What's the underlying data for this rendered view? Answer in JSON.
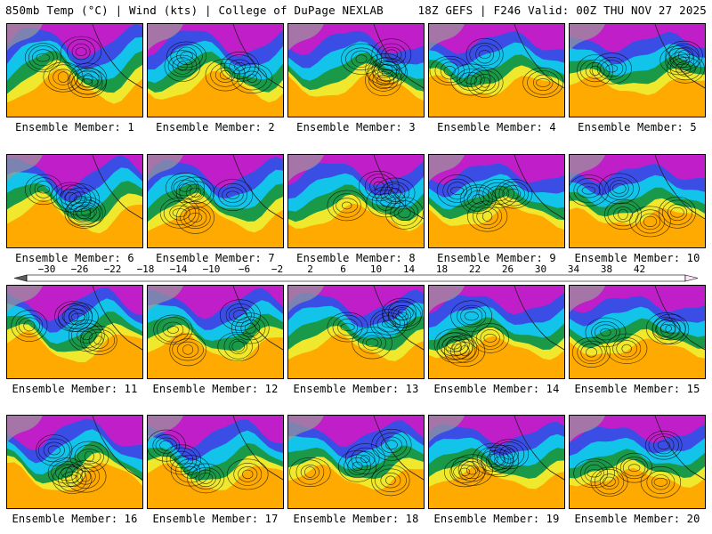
{
  "header": {
    "left": "850mb Temp (°C) | Wind (kts) | College of DuPage NEXLAB",
    "right": "18Z GEFS | F246 Valid: 00Z THU NOV 27 2025"
  },
  "members": [
    {
      "label": "Ensemble Member: 1"
    },
    {
      "label": "Ensemble Member: 2"
    },
    {
      "label": "Ensemble Member: 3"
    },
    {
      "label": "Ensemble Member: 4"
    },
    {
      "label": "Ensemble Member: 5"
    },
    {
      "label": "Ensemble Member: 6"
    },
    {
      "label": "Ensemble Member: 7"
    },
    {
      "label": "Ensemble Member: 8"
    },
    {
      "label": "Ensemble Member: 9"
    },
    {
      "label": "Ensemble Member: 10"
    },
    {
      "label": "Ensemble Member: 11"
    },
    {
      "label": "Ensemble Member: 12"
    },
    {
      "label": "Ensemble Member: 13"
    },
    {
      "label": "Ensemble Member: 14"
    },
    {
      "label": "Ensemble Member: 15"
    },
    {
      "label": "Ensemble Member: 16"
    },
    {
      "label": "Ensemble Member: 17"
    },
    {
      "label": "Ensemble Member: 18"
    },
    {
      "label": "Ensemble Member: 19"
    },
    {
      "label": "Ensemble Member: 20"
    }
  ],
  "colorbar": {
    "ticks": [
      "−30",
      "−26",
      "−22",
      "−18",
      "−14",
      "−10",
      "−6",
      "−2",
      "2",
      "6",
      "10",
      "14",
      "18",
      "22",
      "26",
      "30",
      "34",
      "38",
      "42"
    ],
    "colors": [
      "#5e5e5e",
      "#7a7a7a",
      "#959595",
      "#b0b0b0",
      "#c6c0d4",
      "#e8b4ea",
      "#ff8cff",
      "#ee44ee",
      "#c81ec8",
      "#9a19c0",
      "#6e1fd2",
      "#4a3ee8",
      "#2a60f2",
      "#1a90f4",
      "#12c0ee",
      "#12dccc",
      "#1cd49a",
      "#20b866",
      "#148a3c",
      "#3aa028",
      "#7ccc28",
      "#b8e030",
      "#ecec2c",
      "#fff000",
      "#ffd000",
      "#ffb000",
      "#ff9400",
      "#ff7800",
      "#ff5a00",
      "#f03a00",
      "#dc1e00",
      "#c80000",
      "#a00000",
      "#8a0030",
      "#a0206e",
      "#be46a2",
      "#dc64c8",
      "#ee90e6",
      "#f6c0f0",
      "#fbe4fa"
    ]
  },
  "colors": {
    "cold_purple": "#c01ec8",
    "blue": "#3a4ee6",
    "cyan": "#12c4ea",
    "green": "#1a9a48",
    "yellow": "#f0e82c",
    "orange": "#ffaa00",
    "land_gray": "#9a9a9a"
  }
}
